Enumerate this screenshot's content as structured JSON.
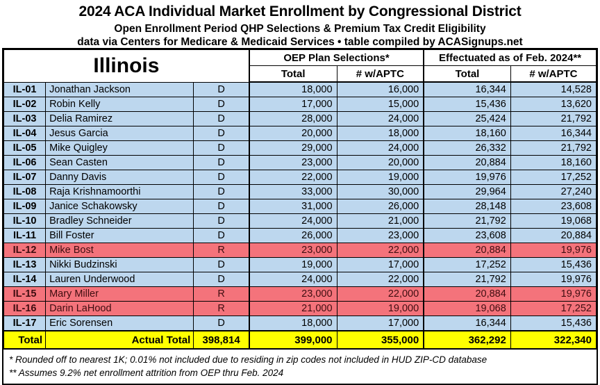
{
  "header": {
    "title": "2024 ACA Individual Market Enrollment by Congressional District",
    "subtitle1": "Open Enrollment Period QHP Selections & Premium Tax Credit Eligibility",
    "subtitle2": "data via Centers for Medicare & Medicaid Services • table compiled by ACASignups.net"
  },
  "table": {
    "state": "Illinois",
    "group_headers": [
      "OEP Plan Selections*",
      "Effectuated as of Feb. 2024**"
    ],
    "sub_headers": [
      "Total",
      "# w/APTC",
      "Total",
      "# w/APTC"
    ],
    "rows": [
      {
        "district": "IL-01",
        "rep": "Jonathan Jackson",
        "party": "D",
        "oep_total": "18,000",
        "oep_aptc": "16,000",
        "eff_total": "16,344",
        "eff_aptc": "14,528"
      },
      {
        "district": "IL-02",
        "rep": "Robin Kelly",
        "party": "D",
        "oep_total": "17,000",
        "oep_aptc": "15,000",
        "eff_total": "15,436",
        "eff_aptc": "13,620"
      },
      {
        "district": "IL-03",
        "rep": "Delia Ramirez",
        "party": "D",
        "oep_total": "28,000",
        "oep_aptc": "24,000",
        "eff_total": "25,424",
        "eff_aptc": "21,792"
      },
      {
        "district": "IL-04",
        "rep": "Jesus Garcia",
        "party": "D",
        "oep_total": "20,000",
        "oep_aptc": "18,000",
        "eff_total": "18,160",
        "eff_aptc": "16,344"
      },
      {
        "district": "IL-05",
        "rep": "Mike Quigley",
        "party": "D",
        "oep_total": "29,000",
        "oep_aptc": "24,000",
        "eff_total": "26,332",
        "eff_aptc": "21,792"
      },
      {
        "district": "IL-06",
        "rep": "Sean Casten",
        "party": "D",
        "oep_total": "23,000",
        "oep_aptc": "20,000",
        "eff_total": "20,884",
        "eff_aptc": "18,160"
      },
      {
        "district": "IL-07",
        "rep": "Danny Davis",
        "party": "D",
        "oep_total": "22,000",
        "oep_aptc": "19,000",
        "eff_total": "19,976",
        "eff_aptc": "17,252"
      },
      {
        "district": "IL-08",
        "rep": "Raja Krishnamoorthi",
        "party": "D",
        "oep_total": "33,000",
        "oep_aptc": "30,000",
        "eff_total": "29,964",
        "eff_aptc": "27,240"
      },
      {
        "district": "IL-09",
        "rep": "Janice Schakowsky",
        "party": "D",
        "oep_total": "31,000",
        "oep_aptc": "26,000",
        "eff_total": "28,148",
        "eff_aptc": "23,608"
      },
      {
        "district": "IL-10",
        "rep": "Bradley Schneider",
        "party": "D",
        "oep_total": "24,000",
        "oep_aptc": "21,000",
        "eff_total": "21,792",
        "eff_aptc": "19,068"
      },
      {
        "district": "IL-11",
        "rep": "Bill Foster",
        "party": "D",
        "oep_total": "26,000",
        "oep_aptc": "23,000",
        "eff_total": "23,608",
        "eff_aptc": "20,884"
      },
      {
        "district": "IL-12",
        "rep": "Mike Bost",
        "party": "R",
        "oep_total": "23,000",
        "oep_aptc": "22,000",
        "eff_total": "20,884",
        "eff_aptc": "19,976"
      },
      {
        "district": "IL-13",
        "rep": "Nikki Budzinski",
        "party": "D",
        "oep_total": "19,000",
        "oep_aptc": "17,000",
        "eff_total": "17,252",
        "eff_aptc": "15,436"
      },
      {
        "district": "IL-14",
        "rep": "Lauren Underwood",
        "party": "D",
        "oep_total": "24,000",
        "oep_aptc": "22,000",
        "eff_total": "21,792",
        "eff_aptc": "19,976"
      },
      {
        "district": "IL-15",
        "rep": "Mary Miller",
        "party": "R",
        "oep_total": "23,000",
        "oep_aptc": "22,000",
        "eff_total": "20,884",
        "eff_aptc": "19,976"
      },
      {
        "district": "IL-16",
        "rep": "Darin LaHood",
        "party": "R",
        "oep_total": "21,000",
        "oep_aptc": "19,000",
        "eff_total": "19,068",
        "eff_aptc": "17,252"
      },
      {
        "district": "IL-17",
        "rep": "Eric Sorensen",
        "party": "D",
        "oep_total": "18,000",
        "oep_aptc": "17,000",
        "eff_total": "16,344",
        "eff_aptc": "15,436"
      }
    ],
    "total_row": {
      "label": "Total",
      "actual_label": "Actual Total",
      "actual_total": "398,814",
      "oep_total": "399,000",
      "oep_aptc": "355,000",
      "eff_total": "362,292",
      "eff_aptc": "322,340"
    }
  },
  "footnotes": [
    "* Rounded off to nearest 1K; 0.01% not included due to residing in zip codes not included in HUD ZIP-CD database",
    "** Assumes 9.2% net enrollment attrition from OEP thru Feb. 2024"
  ],
  "colors": {
    "democrat_row_bg": "#BDD7EE",
    "republican_row_bg": "#F4737B",
    "republican_row_text": "#3F0D10",
    "total_row_bg": "#FFFF00",
    "border": "#000000"
  },
  "chart_data": {
    "type": "table",
    "title": "2024 ACA Individual Market Enrollment by Congressional District — Illinois",
    "columns": [
      "District",
      "Representative",
      "Party",
      "OEP Plan Selections Total",
      "OEP Plan Selections # w/APTC",
      "Effectuated as of Feb. 2024 Total",
      "Effectuated as of Feb. 2024 # w/APTC"
    ],
    "rows": [
      [
        "IL-01",
        "Jonathan Jackson",
        "D",
        18000,
        16000,
        16344,
        14528
      ],
      [
        "IL-02",
        "Robin Kelly",
        "D",
        17000,
        15000,
        15436,
        13620
      ],
      [
        "IL-03",
        "Delia Ramirez",
        "D",
        28000,
        24000,
        25424,
        21792
      ],
      [
        "IL-04",
        "Jesus Garcia",
        "D",
        20000,
        18000,
        18160,
        16344
      ],
      [
        "IL-05",
        "Mike Quigley",
        "D",
        29000,
        24000,
        26332,
        21792
      ],
      [
        "IL-06",
        "Sean Casten",
        "D",
        23000,
        20000,
        20884,
        18160
      ],
      [
        "IL-07",
        "Danny Davis",
        "D",
        22000,
        19000,
        19976,
        17252
      ],
      [
        "IL-08",
        "Raja Krishnamoorthi",
        "D",
        33000,
        30000,
        29964,
        27240
      ],
      [
        "IL-09",
        "Janice Schakowsky",
        "D",
        31000,
        26000,
        28148,
        23608
      ],
      [
        "IL-10",
        "Bradley Schneider",
        "D",
        24000,
        21000,
        21792,
        19068
      ],
      [
        "IL-11",
        "Bill Foster",
        "D",
        26000,
        23000,
        23608,
        20884
      ],
      [
        "IL-12",
        "Mike Bost",
        "R",
        23000,
        22000,
        20884,
        19976
      ],
      [
        "IL-13",
        "Nikki Budzinski",
        "D",
        19000,
        17000,
        17252,
        15436
      ],
      [
        "IL-14",
        "Lauren Underwood",
        "D",
        24000,
        22000,
        21792,
        19976
      ],
      [
        "IL-15",
        "Mary Miller",
        "R",
        23000,
        22000,
        20884,
        19976
      ],
      [
        "IL-16",
        "Darin LaHood",
        "R",
        21000,
        19000,
        19068,
        17252
      ],
      [
        "IL-17",
        "Eric Sorensen",
        "D",
        18000,
        17000,
        16344,
        15436
      ]
    ],
    "totals": {
      "actual_total": 398814,
      "oep_total": 399000,
      "oep_aptc": 355000,
      "eff_total": 362292,
      "eff_aptc": 322340
    }
  }
}
